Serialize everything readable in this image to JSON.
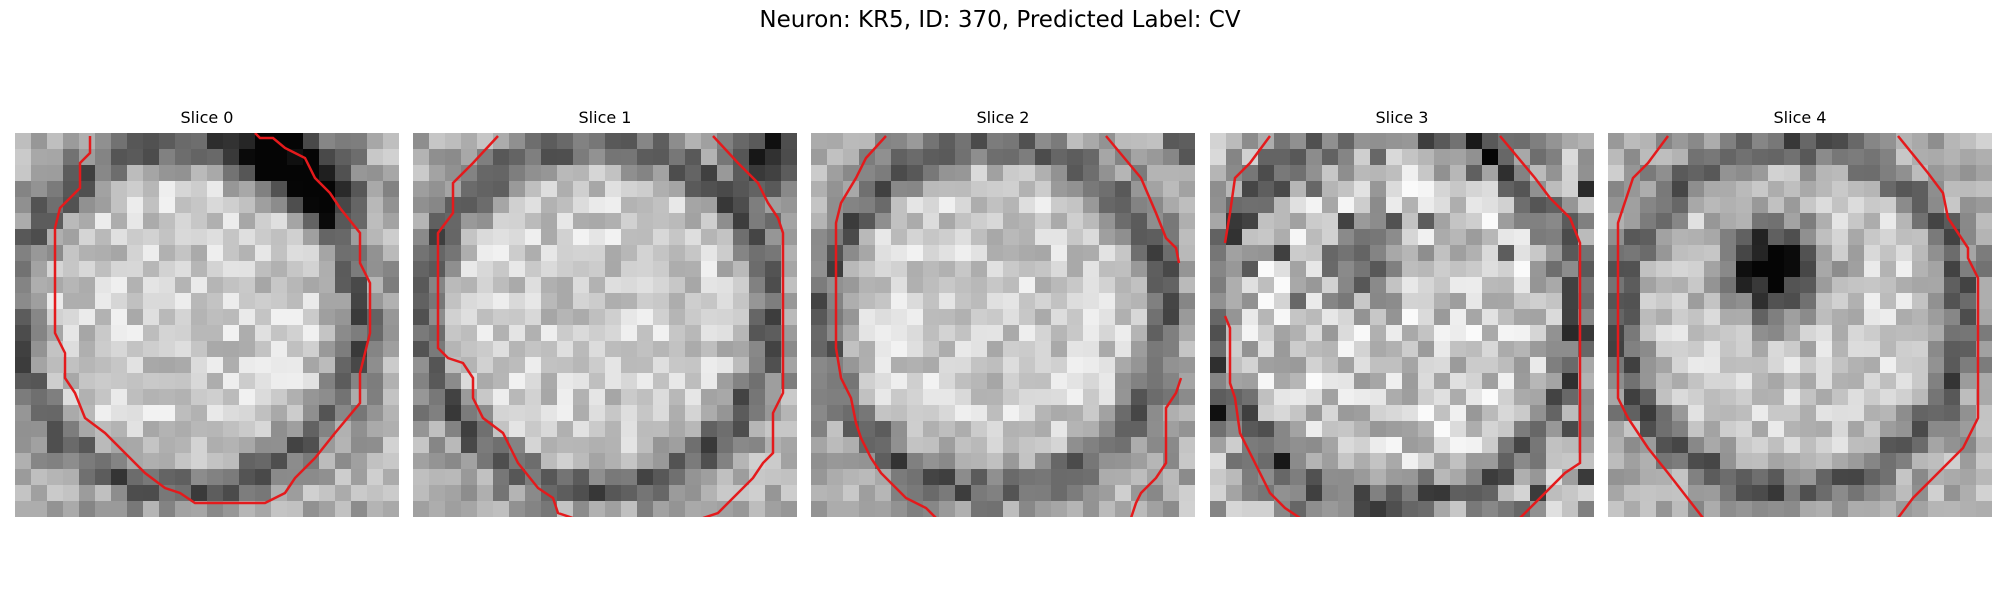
{
  "figure": {
    "title": "Neuron: KR5, ID: 370, Predicted Label: CV"
  },
  "panels": [
    {
      "label": "Slice 0",
      "image": "cell-slice-0",
      "contour_color": "#e41a1c",
      "dark_blob": false
    },
    {
      "label": "Slice 1",
      "image": "cell-slice-1",
      "contour_color": "#e41a1c",
      "dark_blob": false
    },
    {
      "label": "Slice 2",
      "image": "cell-slice-2",
      "contour_color": "#e41a1c",
      "dark_blob": false
    },
    {
      "label": "Slice 3",
      "image": "cell-slice-3",
      "contour_color": "#e41a1c",
      "dark_blob": true
    },
    {
      "label": "Slice 4",
      "image": "cell-slice-4",
      "contour_color": "#e41a1c",
      "dark_blob": true
    }
  ]
}
